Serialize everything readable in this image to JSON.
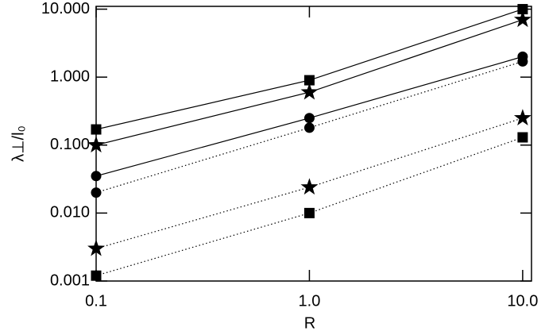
{
  "chart_data": {
    "type": "line",
    "xlabel": "R",
    "ylabel": "λ⊥/l₀",
    "x": [
      0.1,
      1,
      10
    ],
    "xscale": "log",
    "yscale": "log",
    "xlim": [
      0.1,
      11
    ],
    "ylim": [
      0.001,
      11
    ],
    "xticks": [
      0.1,
      {
        "value": 1,
        "label": "1.0"
      },
      {
        "value": 10,
        "label": "10.0"
      }
    ],
    "yticks": [
      {
        "value": 0.001,
        "label": "0.001"
      },
      {
        "value": 0.01,
        "label": "0.010"
      },
      {
        "value": 0.1,
        "label": "0.100"
      },
      {
        "value": 1,
        "label": "1.000"
      },
      {
        "value": 10,
        "label": "10.000"
      }
    ],
    "series": [
      {
        "marker": "square",
        "linestyle": "solid",
        "color": "#000000",
        "values": [
          0.17,
          0.9,
          10
        ]
      },
      {
        "marker": "star",
        "linestyle": "solid",
        "color": "#000000",
        "values": [
          0.1,
          0.6,
          7
        ]
      },
      {
        "marker": "circle",
        "linestyle": "solid",
        "color": "#000000",
        "values": [
          0.035,
          0.25,
          2.0
        ]
      },
      {
        "marker": "circle",
        "linestyle": "dotted",
        "color": "#000000",
        "values": [
          0.02,
          0.18,
          1.7
        ]
      },
      {
        "marker": "star",
        "linestyle": "dotted",
        "color": "#000000",
        "values": [
          0.003,
          0.024,
          0.25
        ]
      },
      {
        "marker": "square",
        "linestyle": "dotted",
        "color": "#000000",
        "values": [
          0.0012,
          0.01,
          0.13
        ]
      }
    ]
  }
}
